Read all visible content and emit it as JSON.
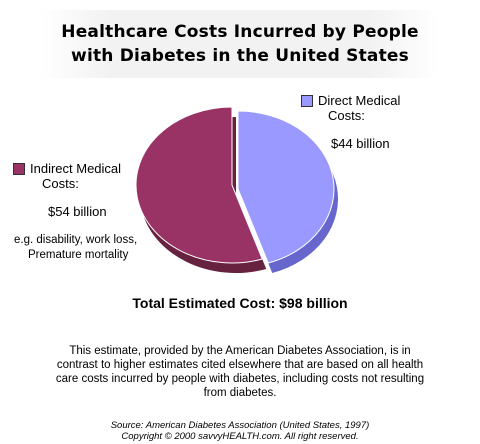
{
  "chart_data": {
    "type": "pie",
    "title_line1": "Healthcare Costs Incurred by People",
    "title_line2": "with Diabetes in the United States",
    "units": "billion USD",
    "slices": [
      {
        "label_line1": "Direct Medical",
        "label_line2": "Costs:",
        "value": 44,
        "value_label": "$44 billion",
        "color": "#9999ff",
        "side_color": "#6666cc"
      },
      {
        "label_line1": "Indirect Medical",
        "label_line2": "Costs:",
        "value": 54,
        "value_label": "$54 billion",
        "color": "#993366",
        "side_color": "#66223f",
        "note_line1": "e.g. disability, work loss,",
        "note_line2": "Premature mortality"
      }
    ],
    "total_label": "Total Estimated Cost: $98 billion"
  },
  "note": {
    "text": "This estimate, provided by the American Diabetes Association, is in contrast to higher estimates cited elsewhere that are based on all health care costs incurred by people with diabetes, including costs not resulting from diabetes."
  },
  "source": {
    "line1": "Source: American Diabetes Association (United States, 1997)",
    "line2": "Copyright © 2000 savvyHEALTH.com. All right reserved."
  }
}
